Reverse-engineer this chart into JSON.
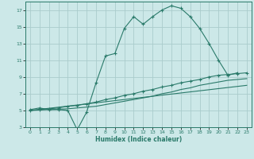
{
  "bg_color": "#cce8e8",
  "grid_color": "#aacccc",
  "line_color": "#2a7a6a",
  "xlabel": "Humidex (Indice chaleur)",
  "xlim": [
    -0.5,
    23.5
  ],
  "ylim": [
    3,
    18
  ],
  "xticks": [
    0,
    1,
    2,
    3,
    4,
    5,
    6,
    7,
    8,
    9,
    10,
    11,
    12,
    13,
    14,
    15,
    16,
    17,
    18,
    19,
    20,
    21,
    22,
    23
  ],
  "yticks": [
    3,
    5,
    7,
    9,
    11,
    13,
    15,
    17
  ],
  "curve1_x": [
    0,
    1,
    2,
    3,
    4,
    5,
    6,
    7,
    8,
    9,
    10,
    11,
    12,
    13,
    14,
    15,
    16,
    17,
    18,
    19,
    20,
    21,
    22
  ],
  "curve1_y": [
    5.1,
    5.3,
    5.1,
    5.1,
    5.0,
    2.7,
    4.8,
    8.3,
    11.5,
    11.8,
    14.8,
    16.2,
    15.3,
    16.2,
    17.0,
    17.5,
    17.2,
    16.2,
    14.8,
    13.0,
    11.0,
    9.2,
    9.5
  ],
  "curve2_x": [
    0,
    1,
    2,
    3,
    4,
    5,
    6,
    7,
    8,
    9,
    10,
    11,
    12,
    13,
    14,
    15,
    16,
    17,
    18,
    19,
    20,
    21,
    22,
    23
  ],
  "curve2_y": [
    5.0,
    5.1,
    5.2,
    5.3,
    5.5,
    5.6,
    5.8,
    6.0,
    6.3,
    6.5,
    6.8,
    7.0,
    7.3,
    7.5,
    7.8,
    8.0,
    8.3,
    8.5,
    8.7,
    9.0,
    9.2,
    9.3,
    9.4,
    9.5
  ],
  "curve3_x": [
    0,
    1,
    2,
    3,
    4,
    5,
    6,
    7,
    8,
    9,
    10,
    11,
    12,
    13,
    14,
    15,
    16,
    17,
    18,
    19,
    20,
    21,
    22,
    23
  ],
  "curve3_y": [
    5.0,
    5.05,
    5.1,
    5.15,
    5.2,
    5.3,
    5.4,
    5.5,
    5.7,
    5.9,
    6.1,
    6.3,
    6.5,
    6.7,
    7.0,
    7.2,
    7.5,
    7.7,
    8.0,
    8.2,
    8.4,
    8.6,
    8.7,
    8.8
  ],
  "curve4_x": [
    0,
    23
  ],
  "curve4_y": [
    5.0,
    8.0
  ],
  "marker": "+"
}
